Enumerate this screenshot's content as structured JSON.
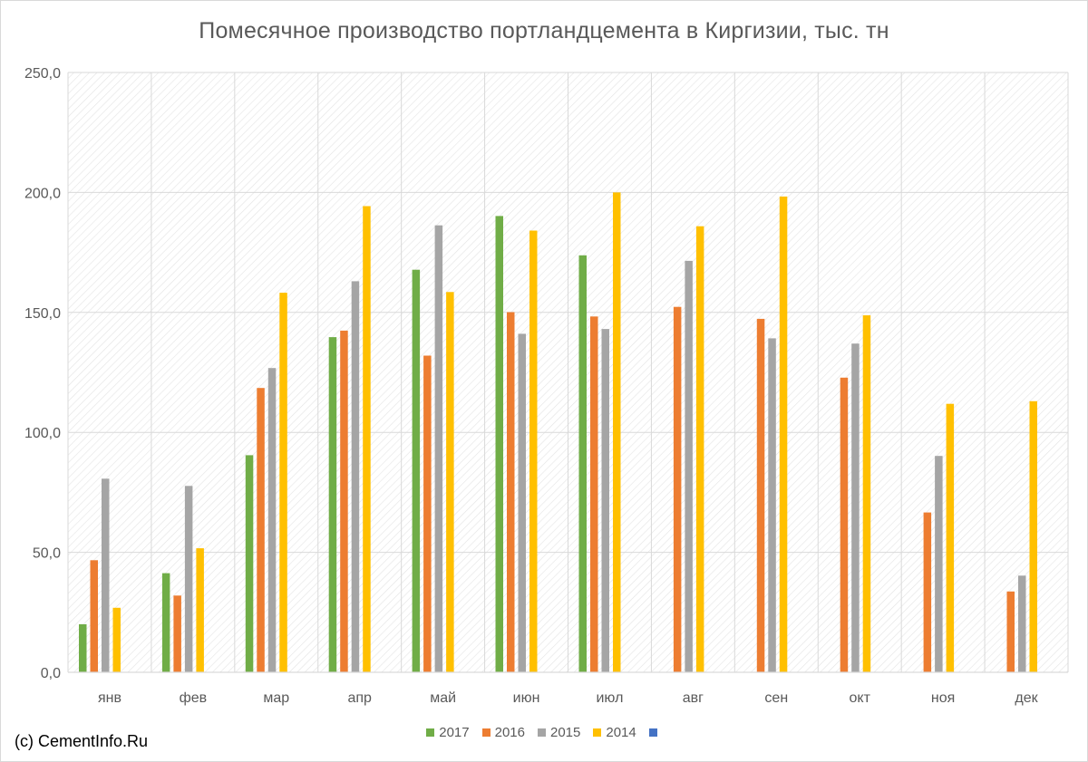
{
  "chart_data": {
    "type": "bar",
    "title": "Помесячное производство портландцемента в Киргизии, тыс. тн",
    "categories": [
      "янв",
      "фев",
      "мар",
      "апр",
      "май",
      "июн",
      "июл",
      "авг",
      "сен",
      "окт",
      "ноя",
      "дек"
    ],
    "series": [
      {
        "name": "2017",
        "color": "#70ad47",
        "values": [
          20.0,
          41.3,
          90.5,
          139.7,
          167.8,
          190.2,
          173.8,
          null,
          null,
          null,
          null,
          null
        ]
      },
      {
        "name": "2016",
        "color": "#ed7d31",
        "values": [
          46.7,
          32.0,
          118.5,
          142.4,
          132.0,
          150.1,
          148.3,
          152.3,
          147.3,
          122.8,
          66.6,
          33.7
        ]
      },
      {
        "name": "2015",
        "color": "#a5a5a5",
        "values": [
          80.7,
          77.7,
          126.8,
          163.0,
          186.3,
          141.1,
          143.1,
          171.5,
          139.2,
          137.0,
          90.2,
          40.3
        ]
      },
      {
        "name": "2014",
        "color": "#ffc000",
        "values": [
          26.9,
          51.7,
          158.2,
          194.3,
          158.5,
          184.1,
          200.0,
          185.9,
          198.3,
          148.8,
          111.9,
          113.0
        ]
      },
      {
        "name": "",
        "color": "#4472c4",
        "values": [
          null,
          null,
          null,
          null,
          null,
          null,
          null,
          null,
          null,
          null,
          null,
          null
        ]
      }
    ],
    "ylim": [
      0,
      250
    ],
    "yticks": [
      0,
      50,
      100,
      150,
      200,
      250
    ],
    "ytick_labels": [
      "0,0",
      "50,0",
      "100,0",
      "150,0",
      "200,0",
      "250,0"
    ],
    "xlabel": "",
    "ylabel": "",
    "grid": true,
    "legend_position": "bottom"
  },
  "footer": {
    "copyright": "(c) CementInfo.Ru"
  }
}
